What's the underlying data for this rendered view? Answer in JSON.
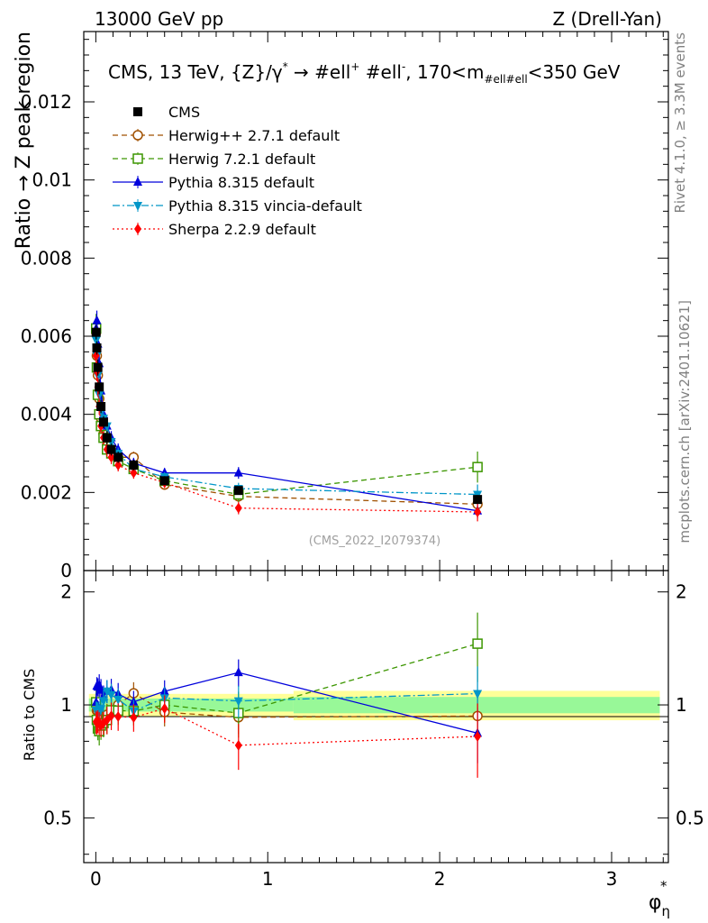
{
  "header": {
    "left": "13000 GeV pp",
    "right": "Z (Drell-Yan)"
  },
  "side_labels": {
    "rivet": "Rivet 4.1.0, ≥ 3.3M events",
    "mcplots": "mcplots.cern.ch [arXiv:2401.10621]"
  },
  "colors": {
    "CMS": "#000000",
    "Herwig++ 2.7.1 default": "#a05000",
    "Herwig 7.2.1 default": "#3c9600",
    "Pythia 8.315 default": "#0000dc",
    "Pythia 8.315 vincia-default": "#0096c8",
    "Sherpa 2.2.9 default": "#ff0000",
    "band_inner": "#98f898",
    "band_outer": "#ffff98"
  },
  "chart_data": {
    "type": "line",
    "title": "CMS, 13 TeV, {Z}/γ* → #ell⁺ #ell⁻, 170<m#ell#ell<350 GeV",
    "title_parts": {
      "main": "CMS, 13 TeV, {Z}/γ",
      "star": "*",
      "arrow": " →  #ell",
      "plus": "+",
      "mid": " #ell",
      "minus": "-",
      "tail": ", 170<m",
      "sub": "#ell#ell",
      "end": "<350 GeV"
    },
    "analysis_id": "(CMS_2022_I2079374)",
    "xlabel": "φ",
    "xlabel_sup": "*",
    "xlabel_sub": "η",
    "ylabel": "Ratio → Z peak region",
    "ratio_ylabel": "Ratio to CMS",
    "xlim": [
      -0.07,
      3.33
    ],
    "ylim": [
      0,
      0.0138
    ],
    "ratio_ylim": [
      0.38,
      2.28
    ],
    "x_ticks": [
      0,
      1,
      2,
      3
    ],
    "x_tick_labels": [
      "0",
      "1",
      "2",
      "3"
    ],
    "y_ticks": [
      0.002,
      0.004,
      0.006,
      0.008,
      0.01,
      0.012
    ],
    "y_tick_labels": [
      "0.002",
      "0.004",
      "0.006",
      "0.008",
      "0.01",
      "0.012"
    ],
    "y_zero_label": "0",
    "ratio_ticks": [
      0.5,
      1,
      2
    ],
    "ratio_tick_labels": [
      "0.5",
      "1",
      "2"
    ],
    "x": [
      0.002,
      0.006,
      0.012,
      0.02,
      0.03,
      0.045,
      0.065,
      0.09,
      0.13,
      0.22,
      0.4,
      0.83,
      2.22
    ],
    "series": [
      {
        "name": "CMS",
        "marker": "square-filled",
        "line": "none",
        "values": [
          0.0061,
          0.0057,
          0.0052,
          0.0047,
          0.0042,
          0.0038,
          0.0034,
          0.0031,
          0.0029,
          0.0027,
          0.0023,
          0.00205,
          0.00182
        ]
      },
      {
        "name": "Herwig++ 2.7.1 default",
        "marker": "circle-open",
        "line": "dashed",
        "values": [
          0.0061,
          0.0055,
          0.005,
          0.0044,
          0.0039,
          0.0035,
          0.0032,
          0.003,
          0.0029,
          0.0029,
          0.0022,
          0.0019,
          0.0017
        ]
      },
      {
        "name": "Herwig 7.2.1 default",
        "marker": "square-open",
        "line": "dashed",
        "values": [
          0.0062,
          0.0052,
          0.0045,
          0.004,
          0.0037,
          0.0034,
          0.0031,
          0.003,
          0.0028,
          0.0026,
          0.0023,
          0.00195,
          0.00265
        ]
      },
      {
        "name": "Pythia 8.315 default",
        "marker": "triangle-up",
        "line": "solid",
        "values": [
          0.0062,
          0.0064,
          0.0058,
          0.0053,
          0.0046,
          0.004,
          0.0037,
          0.0034,
          0.0031,
          0.00275,
          0.0025,
          0.0025,
          0.00153
        ]
      },
      {
        "name": "Pythia 8.315 vincia-default",
        "marker": "triangle-down",
        "line": "dashdot",
        "values": [
          0.0059,
          0.0055,
          0.005,
          0.0045,
          0.0041,
          0.0039,
          0.0037,
          0.0033,
          0.003,
          0.0026,
          0.0024,
          0.0021,
          0.00195
        ]
      },
      {
        "name": "Sherpa 2.2.9 default",
        "marker": "diamond",
        "line": "dotted",
        "values": [
          0.0055,
          0.0051,
          0.0047,
          0.0042,
          0.0037,
          0.0034,
          0.0031,
          0.0029,
          0.0027,
          0.0025,
          0.00225,
          0.0016,
          0.0015
        ]
      }
    ],
    "errors_rel": {
      "CMS": [
        0.03,
        0.03,
        0.04,
        0.04,
        0.04,
        0.04,
        0.05,
        0.05,
        0.05,
        0.05,
        0.05,
        0.05,
        0.06
      ],
      "Herwig++ 2.7.1 default": [
        0.04,
        0.04,
        0.04,
        0.05,
        0.05,
        0.05,
        0.05,
        0.05,
        0.05,
        0.05,
        0.06,
        0.07,
        0.1
      ],
      "Herwig 7.2.1 default": [
        0.06,
        0.05,
        0.05,
        0.06,
        0.06,
        0.06,
        0.06,
        0.06,
        0.06,
        0.06,
        0.07,
        0.1,
        0.15
      ],
      "Pythia 8.315 default": [
        0.04,
        0.04,
        0.04,
        0.05,
        0.05,
        0.05,
        0.05,
        0.05,
        0.05,
        0.05,
        0.05,
        0.06,
        0.12
      ],
      "Pythia 8.315 vincia-default": [
        0.04,
        0.04,
        0.04,
        0.05,
        0.05,
        0.05,
        0.05,
        0.05,
        0.05,
        0.05,
        0.05,
        0.07,
        0.13
      ],
      "Sherpa 2.2.9 default": [
        0.05,
        0.05,
        0.05,
        0.05,
        0.05,
        0.05,
        0.06,
        0.06,
        0.06,
        0.06,
        0.06,
        0.1,
        0.16
      ]
    },
    "band": {
      "x_edges": [
        -0.04,
        0.004,
        0.008,
        0.016,
        0.024,
        0.036,
        0.055,
        0.075,
        0.105,
        0.16,
        0.3,
        0.5,
        1.15,
        3.28
      ],
      "inner": [
        0.04,
        0.04,
        0.04,
        0.04,
        0.04,
        0.04,
        0.04,
        0.04,
        0.04,
        0.04,
        0.04,
        0.04,
        0.05
      ],
      "outer": [
        0.07,
        0.07,
        0.07,
        0.07,
        0.07,
        0.07,
        0.07,
        0.07,
        0.07,
        0.07,
        0.07,
        0.07,
        0.09
      ]
    },
    "legend": [
      "CMS",
      "Herwig++ 2.7.1 default",
      "Herwig 7.2.1 default",
      "Pythia 8.315 default",
      "Pythia 8.315 vincia-default",
      "Sherpa 2.2.9 default"
    ],
    "legend_position": "top-left"
  }
}
